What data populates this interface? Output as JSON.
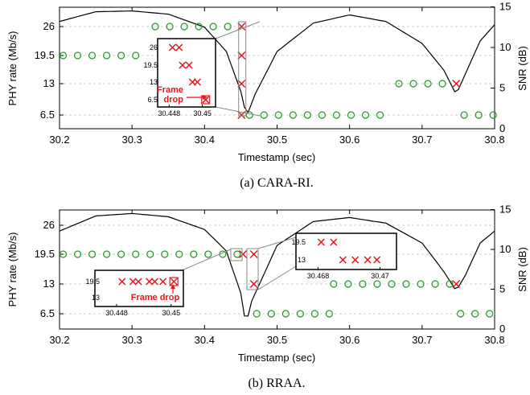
{
  "chart_data": [
    {
      "type": "scatter",
      "caption": "(a)  CARA-RI.",
      "xlabel": "Timestamp (sec)",
      "ylabel": "PHY rate (Mb/s)",
      "y2label": "SNR (dB)",
      "xlim": [
        30.2,
        30.8
      ],
      "x_ticks": [
        "30.2",
        "30.3",
        "30.4",
        "30.5",
        "30.6",
        "30.7",
        "30.8"
      ],
      "y_ticks": [
        "6.5",
        "13",
        "19.5",
        "26"
      ],
      "y2_ticks": [
        "0",
        "5",
        "10",
        "15"
      ],
      "series": [
        {
          "marker": "circle",
          "color": "#1f9a1f",
          "points": [
            [
              30.205,
              19.5
            ],
            [
              30.225,
              19.5
            ],
            [
              30.245,
              19.5
            ],
            [
              30.265,
              19.5
            ],
            [
              30.285,
              19.5
            ],
            [
              30.305,
              19.5
            ],
            [
              30.332,
              26
            ],
            [
              30.352,
              26
            ],
            [
              30.372,
              26
            ],
            [
              30.392,
              26
            ],
            [
              30.412,
              26
            ],
            [
              30.432,
              26
            ],
            [
              30.462,
              6.5
            ],
            [
              30.482,
              6.5
            ],
            [
              30.502,
              6.5
            ],
            [
              30.522,
              6.5
            ],
            [
              30.542,
              6.5
            ],
            [
              30.562,
              6.5
            ],
            [
              30.582,
              6.5
            ],
            [
              30.602,
              6.5
            ],
            [
              30.622,
              6.5
            ],
            [
              30.642,
              6.5
            ],
            [
              30.668,
              13
            ],
            [
              30.688,
              13
            ],
            [
              30.708,
              13
            ],
            [
              30.728,
              13
            ],
            [
              30.758,
              6.5
            ],
            [
              30.778,
              6.5
            ],
            [
              30.798,
              6.5
            ]
          ]
        },
        {
          "marker": "x",
          "color": "#e8151b",
          "points": [
            [
              30.451,
              26
            ],
            [
              30.451,
              19.5
            ],
            [
              30.451,
              13
            ],
            [
              30.451,
              6.5
            ],
            [
              30.747,
              13
            ]
          ]
        }
      ],
      "snr_curve": [
        [
          30.2,
          13.2
        ],
        [
          30.25,
          14.4
        ],
        [
          30.3,
          14.5
        ],
        [
          30.35,
          14.1
        ],
        [
          30.4,
          12.5
        ],
        [
          30.43,
          9.5
        ],
        [
          30.45,
          4.6
        ],
        [
          30.458,
          1.5
        ],
        [
          30.47,
          4.3
        ],
        [
          30.5,
          9.5
        ],
        [
          30.55,
          13
        ],
        [
          30.6,
          14
        ],
        [
          30.65,
          13.2
        ],
        [
          30.7,
          10.5
        ],
        [
          30.73,
          7.2
        ],
        [
          30.747,
          4.2
        ],
        [
          30.76,
          6.8
        ],
        [
          30.78,
          10.8
        ],
        [
          30.8,
          12.8
        ]
      ],
      "zoom_box": [
        30.447,
        30.457,
        4.3,
        27.6
      ],
      "inset": {
        "x_ticks": [
          "30.448",
          "30.45"
        ],
        "y_ticks": [
          "26",
          "19.5",
          "13",
          "6.5"
        ],
        "annotation": "Frame drop",
        "points": [
          [
            30.4482,
            26
          ],
          [
            30.4486,
            26
          ],
          [
            30.4488,
            19.5
          ],
          [
            30.4492,
            19.5
          ],
          [
            30.4494,
            13
          ],
          [
            30.4497,
            13
          ],
          [
            30.4502,
            6.5
          ]
        ]
      }
    },
    {
      "type": "scatter",
      "caption": "(b)  RRAA.",
      "xlabel": "Timestamp (sec)",
      "ylabel": "PHY rate (Mb/s)",
      "y2label": "SNR (dB)",
      "xlim": [
        30.2,
        30.8
      ],
      "x_ticks": [
        "30.2",
        "30.3",
        "30.4",
        "30.5",
        "30.6",
        "30.7",
        "30.8"
      ],
      "y_ticks": [
        "6.5",
        "13",
        "19.5",
        "26"
      ],
      "y2_ticks": [
        "0",
        "5",
        "10",
        "15"
      ],
      "series": [
        {
          "marker": "circle",
          "color": "#1f9a1f",
          "points": [
            [
              30.205,
              19.5
            ],
            [
              30.225,
              19.5
            ],
            [
              30.245,
              19.5
            ],
            [
              30.265,
              19.5
            ],
            [
              30.285,
              19.5
            ],
            [
              30.305,
              19.5
            ],
            [
              30.325,
              19.5
            ],
            [
              30.345,
              19.5
            ],
            [
              30.365,
              19.5
            ],
            [
              30.385,
              19.5
            ],
            [
              30.405,
              19.5
            ],
            [
              30.425,
              19.5
            ],
            [
              30.445,
              19.5
            ],
            [
              30.472,
              6.5
            ],
            [
              30.492,
              6.5
            ],
            [
              30.512,
              6.5
            ],
            [
              30.532,
              6.5
            ],
            [
              30.552,
              6.5
            ],
            [
              30.572,
              6.5
            ],
            [
              30.578,
              13
            ],
            [
              30.598,
              13
            ],
            [
              30.618,
              13
            ],
            [
              30.638,
              13
            ],
            [
              30.658,
              13
            ],
            [
              30.678,
              13
            ],
            [
              30.698,
              13
            ],
            [
              30.718,
              13
            ],
            [
              30.738,
              13
            ],
            [
              30.753,
              6.5
            ],
            [
              30.773,
              6.5
            ],
            [
              30.793,
              6.5
            ]
          ]
        },
        {
          "marker": "x",
          "color": "#e8151b",
          "points": [
            [
              30.453,
              19.5
            ],
            [
              30.468,
              19.5
            ],
            [
              30.468,
              13
            ],
            [
              30.747,
              13
            ]
          ]
        }
      ],
      "snr_curve": [
        [
          30.2,
          12.3
        ],
        [
          30.25,
          14.2
        ],
        [
          30.3,
          14.5
        ],
        [
          30.35,
          14.1
        ],
        [
          30.4,
          12.5
        ],
        [
          30.43,
          9.8
        ],
        [
          30.45,
          4.5
        ],
        [
          30.457,
          0.5
        ],
        [
          30.465,
          3.5
        ],
        [
          30.5,
          10.5
        ],
        [
          30.55,
          13.5
        ],
        [
          30.6,
          14
        ],
        [
          30.65,
          13.3
        ],
        [
          30.7,
          10.8
        ],
        [
          30.73,
          7.2
        ],
        [
          30.747,
          4.8
        ],
        [
          30.76,
          6.8
        ],
        [
          30.78,
          10.8
        ],
        [
          30.8,
          12.3
        ]
      ],
      "inset_left": {
        "x_ticks": [
          "30.448",
          "30.45"
        ],
        "y_ticks": [
          "19.5",
          "13"
        ],
        "annotation": "Frame drop",
        "points": [
          [
            30.4482,
            19.5
          ],
          [
            30.4486,
            19.5
          ],
          [
            30.4488,
            19.5
          ],
          [
            30.4492,
            19.5
          ],
          [
            30.4494,
            19.5
          ],
          [
            30.4497,
            19.5
          ],
          [
            30.4501,
            19.5
          ]
        ]
      },
      "inset_right": {
        "x_ticks": [
          "30.468",
          "30.47"
        ],
        "y_ticks": [
          "19.5",
          "13"
        ],
        "points": [
          [
            30.4681,
            19.5
          ],
          [
            30.4685,
            19.5
          ],
          [
            30.4688,
            13
          ],
          [
            30.4692,
            13
          ],
          [
            30.4696,
            13
          ],
          [
            30.4699,
            13
          ]
        ]
      }
    }
  ]
}
